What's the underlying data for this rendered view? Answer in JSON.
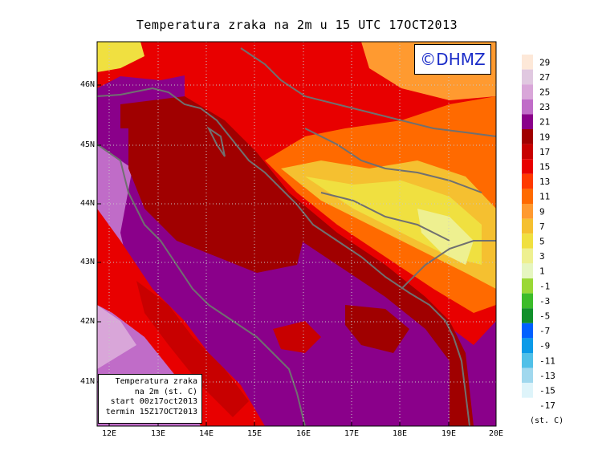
{
  "title": "Temperatura zraka na 2m u 15 UTC 17OCT2013",
  "logo": "©DHMZ",
  "info": {
    "line1": "Temperatura zraka",
    "line2": "na 2m (st. C)",
    "line3": "start 00z17oct2013",
    "line4": "termin 15Z17OCT2013"
  },
  "lat_labels": [
    "46N",
    "45N",
    "44N",
    "43N",
    "42N",
    "41N"
  ],
  "lon_labels": [
    "12E",
    "13E",
    "14E",
    "15E",
    "16E",
    "17E",
    "18E",
    "19E",
    "20E"
  ],
  "legend": {
    "unit": "(st. C)",
    "labels": [
      "29",
      "27",
      "25",
      "23",
      "21",
      "19",
      "17",
      "15",
      "13",
      "11",
      "9",
      "7",
      "5",
      "3",
      "1",
      "-1",
      "-3",
      "-5",
      "-7",
      "-9",
      "-11",
      "-13",
      "-15",
      "-17"
    ],
    "colors": [
      "#fde8d8",
      "#e0c8e0",
      "#d9a6d9",
      "#c06cc8",
      "#8a008a",
      "#a00000",
      "#c80000",
      "#e80000",
      "#ff3a00",
      "#ff6a00",
      "#ff9a30",
      "#f5c030",
      "#f0e040",
      "#eef090",
      "#e6f6c0",
      "#9ad836",
      "#3cbc2a",
      "#10902a",
      "#0060ff",
      "#0a9ae8",
      "#50c0e8",
      "#a0d8ee",
      "#def4fa",
      "#ffffff"
    ]
  }
}
